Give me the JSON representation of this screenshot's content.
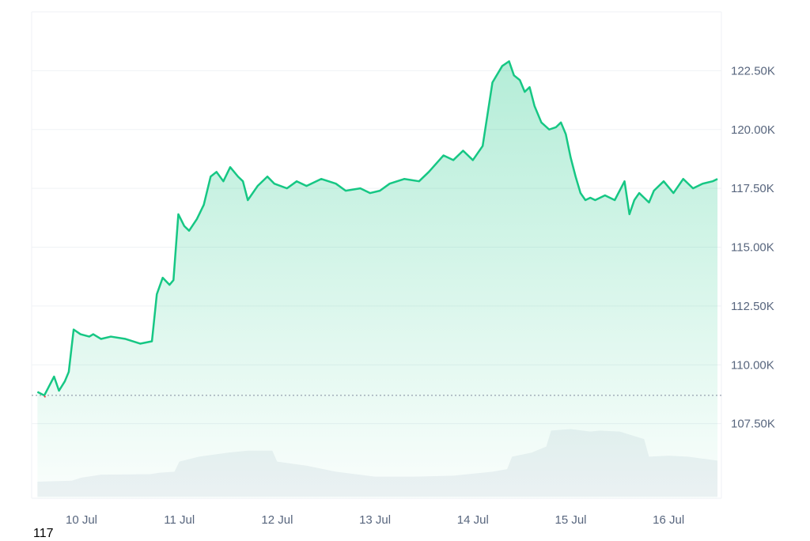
{
  "footer_text": "117",
  "colors": {
    "line": "#16c784",
    "area_top": "#16c784",
    "baseline": "#808a9d",
    "down_marker": "#ea3943",
    "grid": "#eff2f5",
    "volume": "#eff2f5",
    "tick_text": "#58667e"
  },
  "chart_data": {
    "type": "area",
    "title": "",
    "xlabel": "",
    "ylabel": "",
    "y_axis_position": "right",
    "grid": true,
    "x_ticks": [
      "10 Jul",
      "11 Jul",
      "12 Jul",
      "13 Jul",
      "14 Jul",
      "15 Jul",
      "16 Jul"
    ],
    "y_ticks": [
      "107.50K",
      "110.00K",
      "112.50K",
      "115.00K",
      "117.50K",
      "120.00K",
      "122.50K"
    ],
    "ylim": [
      105000,
      125000
    ],
    "xlim_days": [
      9.55,
      16.55
    ],
    "baseline_value": 108700,
    "series": [
      {
        "x": [
          9.55,
          9.62,
          9.67,
          9.72,
          9.77,
          9.83,
          9.87,
          9.92,
          9.99,
          10.08,
          10.12,
          10.2,
          10.3,
          10.45,
          10.6,
          10.72,
          10.77,
          10.83,
          10.9,
          10.94,
          10.99,
          11.05,
          11.1,
          11.18,
          11.25,
          11.32,
          11.38,
          11.45,
          11.52,
          11.6,
          11.65,
          11.7,
          11.8,
          11.9,
          11.97,
          12.1,
          12.2,
          12.3,
          12.45,
          12.6,
          12.7,
          12.85,
          12.95,
          13.05,
          13.15,
          13.3,
          13.45,
          13.55,
          13.7,
          13.8,
          13.9,
          14.0,
          14.1,
          14.2,
          14.3,
          14.37,
          14.42,
          14.48,
          14.53,
          14.58,
          14.63,
          14.7,
          14.78,
          14.85,
          14.9,
          14.95,
          15.0,
          15.05,
          15.1,
          15.15,
          15.2,
          15.25,
          15.35,
          15.45,
          15.55,
          15.6,
          15.65,
          15.7,
          15.75,
          15.8,
          15.85,
          15.95,
          16.05,
          16.15,
          16.25,
          16.35,
          16.45,
          16.5
        ],
        "values": [
          108850,
          108700,
          109100,
          109500,
          108900,
          109300,
          109700,
          111500,
          111300,
          111200,
          111300,
          111100,
          111200,
          111100,
          110900,
          111000,
          113000,
          113700,
          113400,
          113600,
          116400,
          115900,
          115700,
          116200,
          116800,
          118000,
          118200,
          117800,
          118400,
          118000,
          117800,
          117000,
          117600,
          118000,
          117700,
          117500,
          117800,
          117600,
          117900,
          117700,
          117400,
          117500,
          117300,
          117400,
          117700,
          117900,
          117800,
          118200,
          118900,
          118700,
          119100,
          118700,
          119300,
          122000,
          122700,
          122900,
          122300,
          122100,
          121600,
          121800,
          121000,
          120300,
          120000,
          120100,
          120300,
          119800,
          118800,
          118000,
          117300,
          117000,
          117100,
          117000,
          117200,
          117000,
          117800,
          116400,
          117000,
          117300,
          117100,
          116900,
          117400,
          117800,
          117300,
          117900,
          117500,
          117700,
          117800,
          117900
        ]
      }
    ],
    "volume": {
      "x": [
        9.55,
        9.9,
        10.0,
        10.2,
        10.7,
        10.8,
        10.95,
        11.0,
        11.2,
        11.5,
        11.7,
        11.95,
        12.0,
        12.3,
        12.6,
        13.0,
        13.4,
        13.8,
        14.2,
        14.35,
        14.4,
        14.6,
        14.75,
        14.8,
        15.0,
        15.2,
        15.3,
        15.5,
        15.75,
        15.8,
        16.0,
        16.2,
        16.5
      ],
      "values": [
        30,
        32,
        38,
        44,
        45,
        48,
        50,
        70,
        80,
        88,
        92,
        92,
        70,
        62,
        50,
        40,
        40,
        42,
        50,
        55,
        80,
        88,
        100,
        132,
        135,
        130,
        132,
        130,
        115,
        80,
        82,
        80,
        72
      ]
    }
  }
}
